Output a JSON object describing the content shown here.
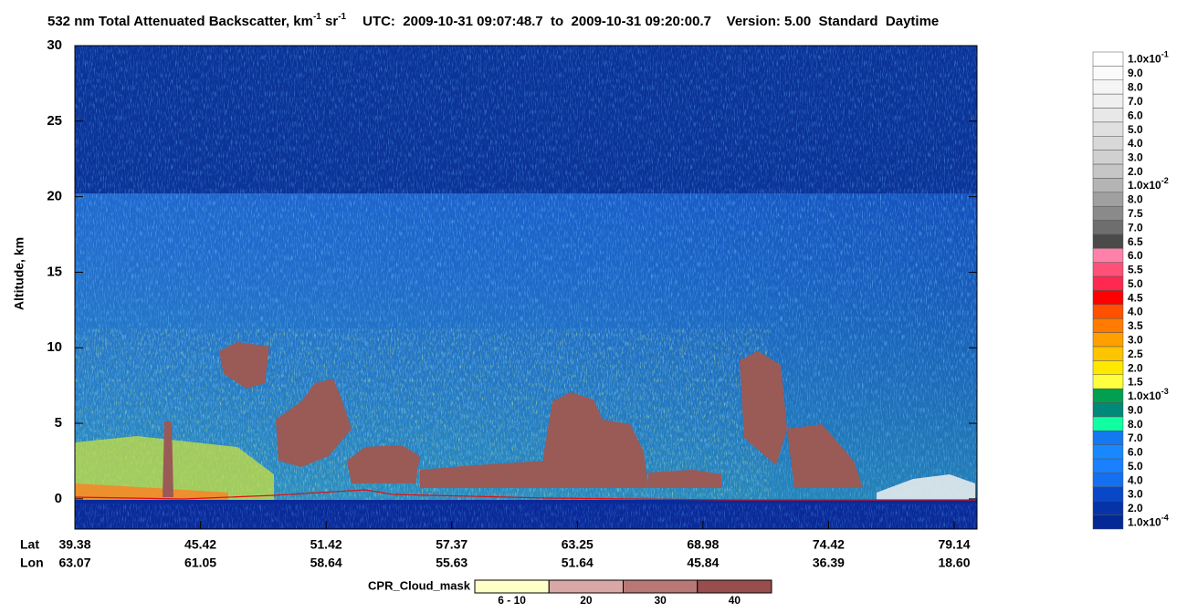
{
  "chart_data": {
    "type": "curtain",
    "title_parts": [
      "532 nm Total Attenuated Backscatter, km",
      "-1",
      " sr",
      "-1"
    ],
    "subtitle": "UTC:  2009-10-31 09:07:48.7  to  2009-10-31 09:20:00.7    Version: 5.00  Standard  Daytime",
    "ylabel": "Altitude, km",
    "ylim": [
      -2,
      30
    ],
    "yticks": [
      0,
      5,
      10,
      15,
      20,
      25,
      30
    ],
    "x_row_labels": [
      "Lat",
      "Lon"
    ],
    "lat": [
      "39.38",
      "45.42",
      "51.42",
      "57.37",
      "63.25",
      "68.98",
      "74.42",
      "79.14"
    ],
    "lon": [
      "63.07",
      "61.05",
      "58.64",
      "55.63",
      "51.64",
      "45.84",
      "36.39",
      "18.60"
    ],
    "colorbar": {
      "labels": [
        {
          "base": "1.0x10",
          "exp": "-1"
        },
        "9.0",
        "8.0",
        "7.0",
        "6.0",
        "5.0",
        "4.0",
        "3.0",
        "2.0",
        {
          "base": "1.0x10",
          "exp": "-2"
        },
        "8.0",
        "7.5",
        "7.0",
        "6.5",
        "6.0",
        "5.5",
        "5.0",
        "4.5",
        "4.0",
        "3.5",
        "3.0",
        "2.5",
        "2.0",
        "1.5",
        {
          "base": "1.0x10",
          "exp": "-3"
        },
        "9.0",
        "8.0",
        "7.0",
        "6.0",
        "5.0",
        "4.0",
        "3.0",
        "2.0",
        {
          "base": "1.0x10",
          "exp": "-4"
        }
      ],
      "colors": [
        "#ffffff",
        "#fbfbfb",
        "#f5f5f5",
        "#efefef",
        "#e8e8e8",
        "#e0e0e0",
        "#d8d8d8",
        "#d0d0d0",
        "#c6c6c6",
        "#b4b4b4",
        "#a0a0a0",
        "#8a8a8a",
        "#6e6e6e",
        "#4a4a4a",
        "#ff80a8",
        "#ff5078",
        "#ff2850",
        "#ff0000",
        "#ff5000",
        "#ff7c00",
        "#ffa000",
        "#ffc400",
        "#ffe800",
        "#ffff40",
        "#00a050",
        "#008878",
        "#10ffa0",
        "#1478f0",
        "#1888ff",
        "#1a80ff",
        "#1470f0",
        "#0848c8",
        "#0634a8",
        "#042896"
      ]
    },
    "cloud_mask": {
      "title": "CPR_Cloud_mask",
      "labels": [
        "6 - 10",
        "20",
        "30",
        "40"
      ],
      "colors": [
        "#ffffc8",
        "#d8a8a6",
        "#b87876",
        "#984e4c"
      ]
    }
  }
}
